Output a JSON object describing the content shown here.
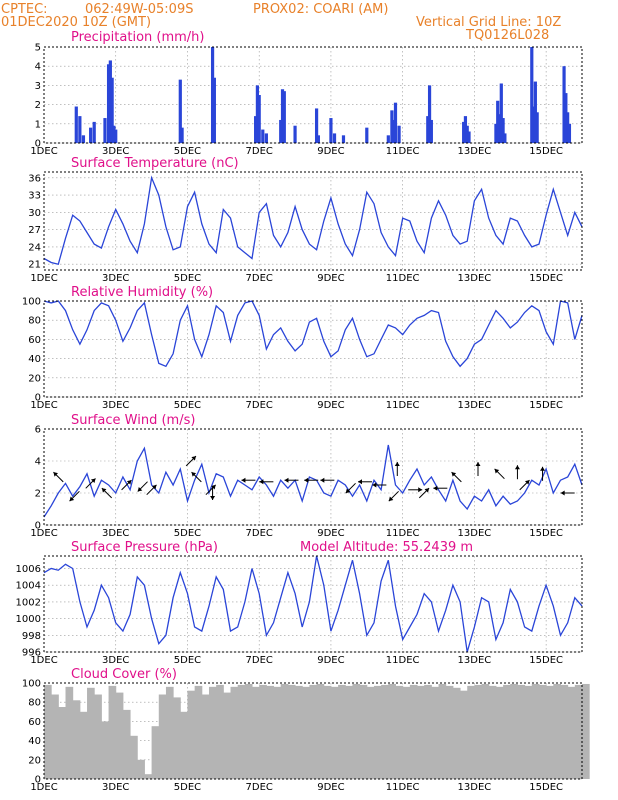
{
  "header": {
    "source": "CPTEC:",
    "coords": "062:49W-05:09S",
    "location": "PROX02: COARI (AM)",
    "date": "01DEC2020 10Z (GMT)",
    "grid_note": "Vertical Grid Line: 10Z",
    "model_code": "TQ0126L028"
  },
  "x_labels": [
    "1DEC",
    "3DEC",
    "5DEC",
    "7DEC",
    "9DEC",
    "11DEC",
    "13DEC",
    "15DEC"
  ],
  "x_labels_day": [
    1,
    3,
    5,
    7,
    9,
    11,
    13,
    15
  ],
  "x_range_days": [
    1,
    16
  ],
  "colors": {
    "header": "#e8812a",
    "title": "#e0108a",
    "series": "#2a45d8",
    "cloud": "#b4b4b4"
  },
  "chart_data": [
    {
      "id": "precip",
      "type": "bar",
      "title": "Precipitation (mm/h)",
      "ylim": [
        0,
        5
      ],
      "yticks": [
        "0",
        "1",
        "2",
        "3",
        "4",
        "5"
      ],
      "x_day": [
        1.9,
        2.0,
        2.1,
        2.3,
        2.4,
        2.7,
        2.8,
        2.85,
        2.9,
        2.95,
        3.0,
        4.8,
        4.85,
        5.7,
        5.75,
        6.9,
        6.95,
        7.0,
        7.1,
        7.2,
        7.6,
        7.65,
        7.7,
        8.0,
        8.6,
        8.65,
        9.0,
        9.1,
        9.35,
        10.0,
        10.6,
        10.7,
        10.75,
        10.8,
        10.9,
        11.7,
        11.75,
        11.8,
        12.7,
        12.75,
        12.8,
        12.85,
        13.6,
        13.65,
        13.7,
        13.75,
        13.8,
        13.85,
        14.6,
        14.65,
        14.7,
        14.75,
        15.5,
        15.55,
        15.6,
        15.65
      ],
      "values": [
        1.9,
        1.4,
        0.4,
        0.8,
        1.1,
        1.3,
        4.1,
        4.3,
        3.4,
        0.9,
        0.7,
        3.3,
        0.8,
        5.0,
        3.4,
        1.4,
        3.0,
        2.5,
        0.7,
        0.5,
        1.2,
        2.8,
        2.7,
        0.9,
        1.8,
        0.4,
        1.3,
        0.5,
        0.4,
        0.8,
        0.4,
        1.7,
        1.2,
        2.1,
        0.9,
        1.4,
        3.0,
        1.2,
        1.1,
        1.4,
        0.9,
        0.6,
        1.0,
        2.2,
        1.5,
        3.1,
        1.3,
        0.5,
        5.0,
        1.9,
        3.2,
        1.6,
        4.0,
        2.6,
        1.6,
        1.0
      ]
    },
    {
      "id": "temp",
      "type": "line",
      "title": "Surface Temperature (nC)",
      "ylim": [
        20,
        37
      ],
      "yticks": [
        "21",
        "24",
        "27",
        "30",
        "33",
        "36"
      ],
      "ytick_values": [
        21,
        24,
        27,
        30,
        33,
        36
      ],
      "x_day": [
        1.0,
        1.2,
        1.4,
        1.6,
        1.8,
        2.0,
        2.2,
        2.4,
        2.6,
        2.8,
        3.0,
        3.2,
        3.4,
        3.6,
        3.8,
        4.0,
        4.2,
        4.4,
        4.6,
        4.8,
        5.0,
        5.2,
        5.4,
        5.6,
        5.8,
        6.0,
        6.2,
        6.4,
        6.6,
        6.8,
        7.0,
        7.2,
        7.4,
        7.6,
        7.8,
        8.0,
        8.2,
        8.4,
        8.6,
        8.8,
        9.0,
        9.2,
        9.4,
        9.6,
        9.8,
        10.0,
        10.2,
        10.4,
        10.6,
        10.8,
        11.0,
        11.2,
        11.4,
        11.6,
        11.8,
        12.0,
        12.2,
        12.4,
        12.6,
        12.8,
        13.0,
        13.2,
        13.4,
        13.6,
        13.8,
        14.0,
        14.2,
        14.4,
        14.6,
        14.8,
        15.0,
        15.2,
        15.4,
        15.6,
        15.8,
        16.0
      ],
      "values": [
        22.0,
        21.3,
        21.0,
        25.5,
        29.5,
        28.5,
        26.5,
        24.5,
        23.8,
        27.5,
        30.5,
        28.0,
        25.0,
        23.0,
        28.0,
        36.0,
        33.0,
        27.5,
        23.5,
        24.0,
        31.0,
        33.5,
        28.0,
        24.5,
        23.0,
        30.5,
        29.0,
        24.0,
        23.0,
        22.0,
        30.0,
        31.5,
        26.0,
        24.0,
        26.5,
        31.0,
        27.0,
        24.5,
        23.5,
        28.5,
        32.5,
        28.0,
        24.5,
        22.5,
        27.0,
        33.5,
        31.5,
        26.5,
        24.0,
        22.5,
        29.0,
        28.5,
        25.0,
        23.0,
        29.0,
        32.0,
        29.5,
        26.0,
        24.5,
        25.0,
        32.0,
        34.0,
        29.0,
        26.0,
        24.5,
        29.0,
        28.5,
        26.0,
        24.0,
        24.5,
        29.5,
        34.0,
        30.0,
        26.0,
        30.0,
        27.5
      ]
    },
    {
      "id": "rh",
      "type": "line",
      "title": "Relative Humidity (%)",
      "ylim": [
        0,
        100
      ],
      "yticks": [
        "0",
        "20",
        "40",
        "60",
        "80",
        "100"
      ],
      "ytick_values": [
        0,
        20,
        40,
        60,
        80,
        100
      ],
      "x_day": [
        1.0,
        1.2,
        1.4,
        1.6,
        1.8,
        2.0,
        2.2,
        2.4,
        2.6,
        2.8,
        3.0,
        3.2,
        3.4,
        3.6,
        3.8,
        4.0,
        4.2,
        4.4,
        4.6,
        4.8,
        5.0,
        5.2,
        5.4,
        5.6,
        5.8,
        6.0,
        6.2,
        6.4,
        6.6,
        6.8,
        7.0,
        7.2,
        7.4,
        7.6,
        7.8,
        8.0,
        8.2,
        8.4,
        8.6,
        8.8,
        9.0,
        9.2,
        9.4,
        9.6,
        9.8,
        10.0,
        10.2,
        10.4,
        10.6,
        10.8,
        11.0,
        11.2,
        11.4,
        11.6,
        11.8,
        12.0,
        12.2,
        12.4,
        12.6,
        12.8,
        13.0,
        13.2,
        13.4,
        13.6,
        13.8,
        14.0,
        14.2,
        14.4,
        14.6,
        14.8,
        15.0,
        15.2,
        15.4,
        15.6,
        15.8,
        16.0
      ],
      "values": [
        100,
        98,
        100,
        90,
        70,
        55,
        70,
        90,
        98,
        95,
        80,
        58,
        72,
        90,
        98,
        65,
        35,
        32,
        45,
        80,
        95,
        60,
        42,
        65,
        95,
        88,
        58,
        85,
        98,
        100,
        85,
        50,
        65,
        72,
        58,
        48,
        55,
        78,
        82,
        58,
        42,
        48,
        70,
        82,
        60,
        42,
        45,
        60,
        75,
        72,
        65,
        75,
        82,
        85,
        90,
        88,
        58,
        42,
        32,
        40,
        55,
        60,
        75,
        90,
        82,
        72,
        78,
        88,
        95,
        90,
        68,
        55,
        100,
        98,
        60,
        85
      ]
    },
    {
      "id": "wind",
      "type": "line",
      "title": "Surface Wind (m/s)",
      "ylim": [
        0,
        6
      ],
      "yticks": [
        "0",
        "2",
        "4",
        "6"
      ],
      "ytick_values": [
        0,
        2,
        4,
        6
      ],
      "x_day": [
        1.0,
        1.2,
        1.4,
        1.6,
        1.8,
        2.0,
        2.2,
        2.4,
        2.6,
        2.8,
        3.0,
        3.2,
        3.4,
        3.6,
        3.8,
        4.0,
        4.2,
        4.4,
        4.6,
        4.8,
        5.0,
        5.2,
        5.4,
        5.6,
        5.8,
        6.0,
        6.2,
        6.4,
        6.6,
        6.8,
        7.0,
        7.2,
        7.4,
        7.6,
        7.8,
        8.0,
        8.2,
        8.4,
        8.6,
        8.8,
        9.0,
        9.2,
        9.4,
        9.6,
        9.8,
        10.0,
        10.2,
        10.4,
        10.6,
        10.8,
        11.0,
        11.2,
        11.4,
        11.6,
        11.8,
        12.0,
        12.2,
        12.4,
        12.6,
        12.8,
        13.0,
        13.2,
        13.4,
        13.6,
        13.8,
        14.0,
        14.2,
        14.4,
        14.6,
        14.8,
        15.0,
        15.2,
        15.4,
        15.6,
        15.8,
        16.0
      ],
      "values": [
        0.5,
        1.2,
        2.0,
        2.6,
        1.8,
        2.4,
        3.2,
        1.8,
        2.8,
        2.5,
        2.0,
        3.0,
        2.2,
        4.0,
        4.8,
        2.5,
        2.0,
        3.3,
        2.5,
        3.5,
        1.5,
        2.8,
        3.8,
        2.0,
        3.2,
        3.0,
        1.8,
        2.8,
        2.5,
        2.2,
        3.0,
        2.5,
        1.8,
        2.8,
        2.3,
        2.8,
        1.5,
        3.0,
        2.8,
        2.0,
        1.8,
        2.8,
        2.5,
        1.8,
        2.5,
        1.5,
        2.8,
        2.2,
        5.0,
        2.5,
        2.0,
        2.8,
        3.5,
        2.5,
        3.0,
        2.2,
        1.5,
        2.8,
        1.5,
        1.0,
        1.8,
        1.5,
        2.2,
        1.2,
        1.8,
        1.3,
        1.5,
        2.0,
        2.8,
        2.5,
        3.5,
        2.0,
        2.8,
        3.0,
        3.8,
        2.5
      ]
    },
    {
      "id": "pressure",
      "type": "line",
      "title": "Surface Pressure (hPa)",
      "annotation": "Model Altitude: 55.2439  m",
      "ylim": [
        996,
        1007.5
      ],
      "yticks": [
        "996",
        "998",
        "1000",
        "1002",
        "1004",
        "1006"
      ],
      "ytick_values": [
        996,
        998,
        1000,
        1002,
        1004,
        1006
      ],
      "x_day": [
        1.0,
        1.2,
        1.4,
        1.6,
        1.8,
        2.0,
        2.2,
        2.4,
        2.6,
        2.8,
        3.0,
        3.2,
        3.4,
        3.6,
        3.8,
        4.0,
        4.2,
        4.4,
        4.6,
        4.8,
        5.0,
        5.2,
        5.4,
        5.6,
        5.8,
        6.0,
        6.2,
        6.4,
        6.6,
        6.8,
        7.0,
        7.2,
        7.4,
        7.6,
        7.8,
        8.0,
        8.2,
        8.4,
        8.6,
        8.8,
        9.0,
        9.2,
        9.4,
        9.6,
        9.8,
        10.0,
        10.2,
        10.4,
        10.6,
        10.8,
        11.0,
        11.2,
        11.4,
        11.6,
        11.8,
        12.0,
        12.2,
        12.4,
        12.6,
        12.8,
        13.0,
        13.2,
        13.4,
        13.6,
        13.8,
        14.0,
        14.2,
        14.4,
        14.6,
        14.8,
        15.0,
        15.2,
        15.4,
        15.6,
        15.8,
        16.0
      ],
      "values": [
        1005.5,
        1006.0,
        1005.8,
        1006.5,
        1006.0,
        1002.0,
        999.0,
        1001.0,
        1004.0,
        1002.5,
        999.5,
        998.5,
        1000.5,
        1005.0,
        1004.0,
        1000.0,
        997.0,
        998.0,
        1002.5,
        1005.5,
        1003.0,
        999.0,
        998.5,
        1001.5,
        1005.0,
        1003.5,
        998.5,
        999.0,
        1002.0,
        1006.0,
        1003.0,
        998.0,
        999.5,
        1002.5,
        1005.5,
        1003.0,
        999.0,
        1002.0,
        1007.5,
        1004.0,
        998.5,
        1001.0,
        1004.0,
        1007.0,
        1003.0,
        998.0,
        999.5,
        1004.5,
        1007.0,
        1001.5,
        997.5,
        999.0,
        1000.5,
        1003.0,
        1002.0,
        998.5,
        1001.0,
        1004.0,
        1002.0,
        996.0,
        999.0,
        1002.5,
        1002.0,
        997.5,
        999.5,
        1003.5,
        1002.0,
        999.0,
        998.5,
        1001.5,
        1004.0,
        1001.5,
        998.0,
        999.5,
        1002.5,
        1001.5
      ]
    },
    {
      "id": "cloud",
      "type": "area",
      "title": "Cloud Cover (%)",
      "ylim": [
        0,
        100
      ],
      "yticks": [
        "0",
        "20",
        "40",
        "60",
        "80",
        "100"
      ],
      "ytick_values": [
        0,
        20,
        40,
        60,
        80,
        100
      ],
      "x_day": [
        1.0,
        1.2,
        1.4,
        1.6,
        1.8,
        2.0,
        2.2,
        2.4,
        2.6,
        2.8,
        3.0,
        3.2,
        3.4,
        3.6,
        3.8,
        4.0,
        4.2,
        4.4,
        4.6,
        4.8,
        5.0,
        5.2,
        5.4,
        5.6,
        5.8,
        6.0,
        6.2,
        6.4,
        6.6,
        6.8,
        7.0,
        7.2,
        7.4,
        7.6,
        7.8,
        8.0,
        8.2,
        8.4,
        8.6,
        8.8,
        9.0,
        9.2,
        9.4,
        9.6,
        9.8,
        10.0,
        10.2,
        10.4,
        10.6,
        10.8,
        11.0,
        11.2,
        11.4,
        11.6,
        11.8,
        12.0,
        12.2,
        12.4,
        12.6,
        12.8,
        13.0,
        13.2,
        13.4,
        13.6,
        13.8,
        14.0,
        14.2,
        14.4,
        14.6,
        14.8,
        15.0,
        15.2,
        15.4,
        15.6,
        15.8,
        16.0
      ],
      "values": [
        98,
        88,
        75,
        96,
        82,
        70,
        95,
        88,
        60,
        97,
        90,
        72,
        45,
        20,
        5,
        55,
        88,
        96,
        85,
        70,
        92,
        97,
        88,
        96,
        98,
        90,
        96,
        98,
        99,
        96,
        98,
        97,
        96,
        99,
        98,
        97,
        96,
        98,
        99,
        97,
        96,
        98,
        97,
        99,
        98,
        96,
        97,
        98,
        99,
        97,
        96,
        98,
        97,
        98,
        96,
        99,
        97,
        95,
        92,
        97,
        98,
        99,
        97,
        96,
        98,
        99,
        98,
        97,
        99,
        98,
        97,
        99,
        98,
        96,
        98,
        99
      ]
    }
  ],
  "wind_arrows": [
    {
      "day": 1.4,
      "speed": 3.0,
      "dir": "nw"
    },
    {
      "day": 1.85,
      "speed": 1.8,
      "dir": "sw"
    },
    {
      "day": 2.3,
      "speed": 2.6,
      "dir": "ne"
    },
    {
      "day": 2.75,
      "speed": 2.0,
      "dir": "nw"
    },
    {
      "day": 3.3,
      "speed": 2.5,
      "dir": "ne"
    },
    {
      "day": 3.75,
      "speed": 2.4,
      "dir": "sw"
    },
    {
      "day": 4.0,
      "speed": 2.2,
      "dir": "ne"
    },
    {
      "day": 5.1,
      "speed": 4.0,
      "dir": "ne"
    },
    {
      "day": 5.25,
      "speed": 3.0,
      "dir": "nw"
    },
    {
      "day": 5.65,
      "speed": 2.2,
      "dir": "ne"
    },
    {
      "day": 5.7,
      "speed": 2.0,
      "dir": "s"
    },
    {
      "day": 6.7,
      "speed": 2.8,
      "dir": "w"
    },
    {
      "day": 7.2,
      "speed": 2.7,
      "dir": "w"
    },
    {
      "day": 7.9,
      "speed": 2.8,
      "dir": "w"
    },
    {
      "day": 8.45,
      "speed": 2.8,
      "dir": "w"
    },
    {
      "day": 8.9,
      "speed": 2.8,
      "dir": "w"
    },
    {
      "day": 9.55,
      "speed": 2.3,
      "dir": "sw"
    },
    {
      "day": 9.95,
      "speed": 2.7,
      "dir": "w"
    },
    {
      "day": 10.35,
      "speed": 2.5,
      "dir": "w"
    },
    {
      "day": 10.75,
      "speed": 1.8,
      "dir": "sw"
    },
    {
      "day": 10.85,
      "speed": 3.5,
      "dir": "n"
    },
    {
      "day": 11.35,
      "speed": 2.2,
      "dir": "e"
    },
    {
      "day": 11.6,
      "speed": 2.0,
      "dir": "ne"
    },
    {
      "day": 12.05,
      "speed": 2.3,
      "dir": "w"
    },
    {
      "day": 12.5,
      "speed": 3.0,
      "dir": "nw"
    },
    {
      "day": 13.1,
      "speed": 3.5,
      "dir": "n"
    },
    {
      "day": 13.7,
      "speed": 3.2,
      "dir": "nw"
    },
    {
      "day": 14.2,
      "speed": 3.3,
      "dir": "n"
    },
    {
      "day": 14.4,
      "speed": 2.5,
      "dir": "ne"
    },
    {
      "day": 14.9,
      "speed": 3.2,
      "dir": "n"
    },
    {
      "day": 15.6,
      "speed": 2.0,
      "dir": "w"
    }
  ]
}
